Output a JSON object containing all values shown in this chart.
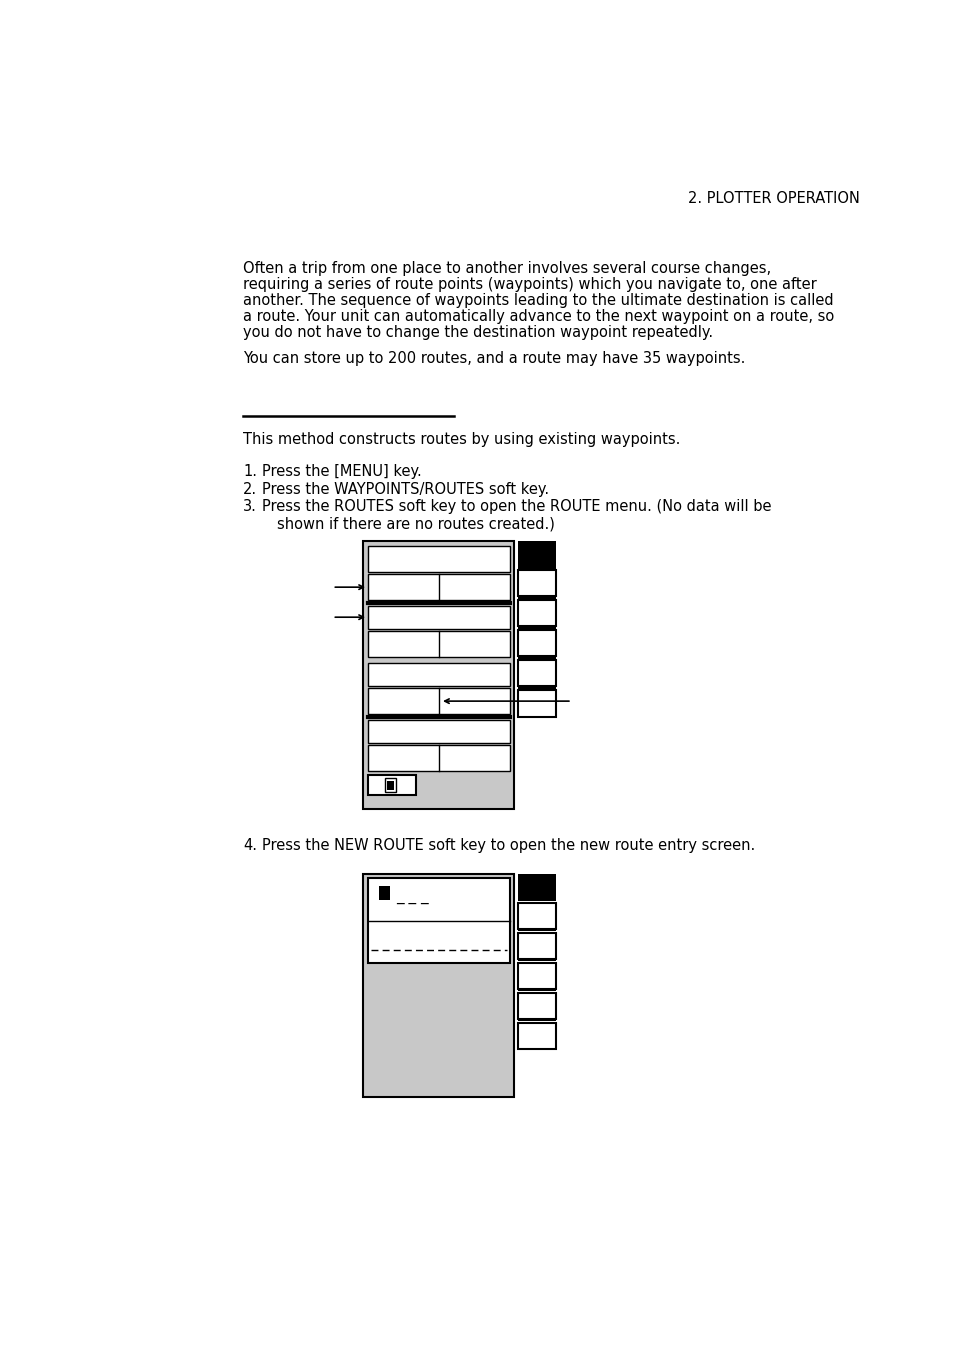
{
  "bg_color": "#ffffff",
  "header_text": "2. PLOTTER OPERATION",
  "para1_lines": [
    "Often a trip from one place to another involves several course changes,",
    "requiring a series of route points (waypoints) which you navigate to, one after",
    "another. The sequence of waypoints leading to the ultimate destination is called",
    "a route. Your unit can automatically advance to the next waypoint on a route, so",
    "you do not have to change the destination waypoint repeatedly."
  ],
  "para2": "You can store up to 200 routes, and a route may have 35 waypoints.",
  "section_desc": "This method constructs routes by using existing waypoints.",
  "step1": "Press the [MENU] key.",
  "step2": "Press the WAYPOINTS/ROUTES soft key.",
  "step3a": "Press the ROUTES soft key to open the ROUTE menu. (No data will be",
  "step3b": "shown if there are no routes created.)",
  "step4": "Press the NEW ROUTE soft key to open the new route entry screen.",
  "gray_color": "#c8c8c8",
  "black": "#000000",
  "white": "#ffffff"
}
